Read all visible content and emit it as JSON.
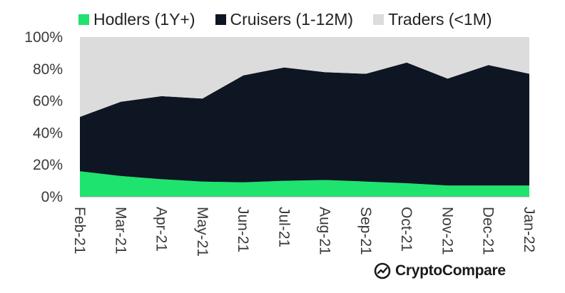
{
  "chart_data": {
    "type": "area",
    "stacked": true,
    "normalized": true,
    "x": [
      "Feb-21",
      "Mar-21",
      "Apr-21",
      "May-21",
      "Jun-21",
      "Jul-21",
      "Aug-21",
      "Sep-21",
      "Oct-21",
      "Nov-21",
      "Dec-21",
      "Jan-22"
    ],
    "series": [
      {
        "name": "Hodlers (1Y+)",
        "color": "#1ee36e",
        "values": [
          16,
          13,
          11,
          9.5,
          9,
          10,
          10.5,
          9.5,
          8.5,
          7,
          7,
          7
        ]
      },
      {
        "name": "Cruisers (1-12M)",
        "color": "#0d1622",
        "values": [
          34,
          46.5,
          52,
          52,
          67,
          71,
          67.5,
          67.5,
          75.5,
          67,
          75.5,
          70
        ]
      },
      {
        "name": "Traders (<1M)",
        "color": "#dcdcdc",
        "values": [
          50,
          40.5,
          37,
          38.5,
          24,
          19,
          22,
          23,
          16,
          26,
          17.5,
          23
        ]
      }
    ],
    "ylim": [
      0,
      100
    ],
    "y_ticks": [
      "0%",
      "20%",
      "40%",
      "60%",
      "80%",
      "100%"
    ],
    "legend_position": "top",
    "grid": false
  },
  "brand": {
    "name": "CryptoCompare",
    "icon": "cryptocompare-logo-icon"
  }
}
